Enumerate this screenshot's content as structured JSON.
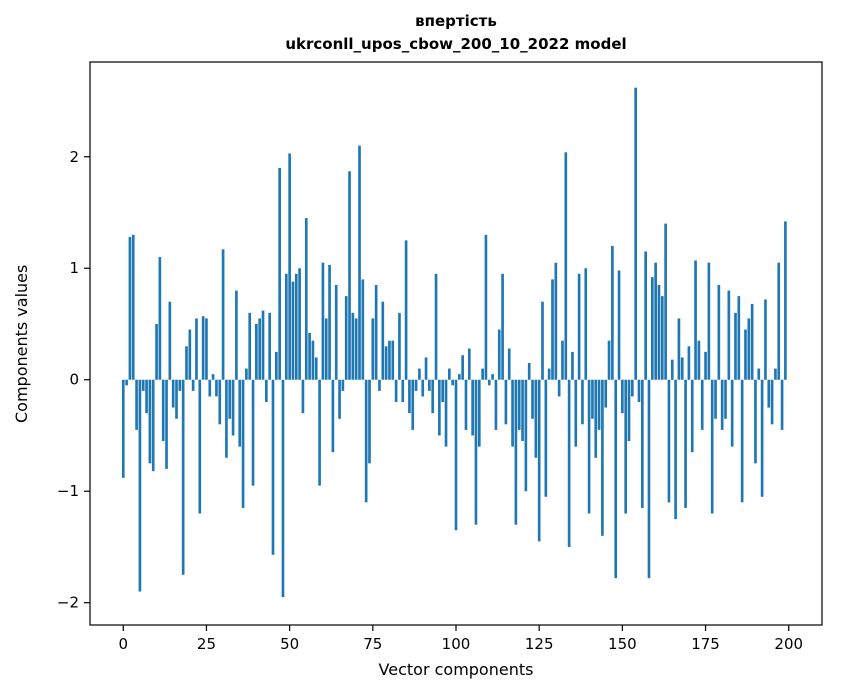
{
  "chart_data": {
    "type": "bar",
    "title_line1": "впертість",
    "title_line2": "ukrconll_upos_cbow_200_10_2022 model",
    "xlabel": "Vector components",
    "ylabel": "Components values",
    "x_ticks": [
      0,
      25,
      50,
      75,
      100,
      125,
      150,
      175,
      200
    ],
    "y_ticks": [
      -2,
      -1,
      0,
      1,
      2
    ],
    "xlim": [
      -10,
      210
    ],
    "ylim": [
      -2.2,
      2.85
    ],
    "grid": false,
    "legend": "none",
    "bar_color": "#1f77b4",
    "bar_width": 0.8,
    "x_start": 0,
    "values": [
      -0.88,
      -0.05,
      1.28,
      1.3,
      -0.45,
      -1.9,
      -0.1,
      -0.3,
      -0.75,
      -0.82,
      0.5,
      1.1,
      -0.55,
      -0.8,
      0.7,
      -0.25,
      -0.35,
      -0.1,
      -1.75,
      0.3,
      0.45,
      -0.1,
      0.55,
      -1.2,
      0.57,
      0.55,
      -0.15,
      0.05,
      -0.15,
      -0.4,
      1.17,
      -0.7,
      -0.35,
      -0.5,
      0.8,
      -0.6,
      -1.15,
      0.1,
      0.6,
      -0.95,
      0.5,
      0.55,
      0.62,
      -0.2,
      0.6,
      -1.57,
      0.25,
      1.9,
      -1.95,
      0.95,
      2.03,
      0.88,
      0.95,
      1.0,
      -0.3,
      1.45,
      0.42,
      0.35,
      0.2,
      -0.95,
      1.05,
      0.55,
      1.03,
      -0.65,
      0.85,
      -0.35,
      -0.1,
      0.75,
      1.87,
      0.6,
      0.55,
      2.1,
      0.9,
      -1.1,
      -0.75,
      0.55,
      0.85,
      -0.1,
      0.7,
      0.3,
      0.35,
      0.35,
      -0.2,
      0.6,
      -0.2,
      1.25,
      -0.3,
      -0.45,
      -0.1,
      0.1,
      -0.15,
      0.2,
      -0.1,
      -0.3,
      0.95,
      -0.5,
      -0.2,
      -0.6,
      0.1,
      -0.05,
      -1.35,
      0.05,
      0.22,
      -0.45,
      0.28,
      -0.5,
      -1.3,
      -0.6,
      0.1,
      1.3,
      -0.05,
      0.05,
      -0.45,
      0.45,
      0.95,
      -0.4,
      0.28,
      -0.6,
      -1.3,
      -0.45,
      -0.55,
      -1.0,
      0.15,
      -0.35,
      -0.7,
      -1.45,
      0.7,
      -1.05,
      0.1,
      0.9,
      1.05,
      -0.15,
      0.35,
      2.04,
      -1.5,
      0.25,
      -0.6,
      0.95,
      -0.4,
      1.0,
      -1.2,
      -0.35,
      -0.7,
      -0.45,
      -1.4,
      -0.25,
      0.35,
      1.2,
      -1.78,
      0.98,
      -0.3,
      -1.2,
      -0.55,
      -0.15,
      2.62,
      -0.2,
      -1.15,
      1.15,
      -1.78,
      0.92,
      1.05,
      0.85,
      0.75,
      1.4,
      -1.1,
      0.18,
      -1.25,
      0.55,
      0.2,
      -1.15,
      0.3,
      -0.65,
      1.07,
      0.35,
      -0.45,
      0.25,
      1.05,
      -1.2,
      -0.35,
      0.85,
      -0.45,
      -0.35,
      0.8,
      -0.6,
      0.6,
      0.75,
      -1.1,
      0.45,
      0.55,
      0.68,
      -0.75,
      0.1,
      -1.05,
      0.72,
      -0.25,
      -0.4,
      0.1,
      1.05,
      -0.45,
      1.42
    ]
  }
}
